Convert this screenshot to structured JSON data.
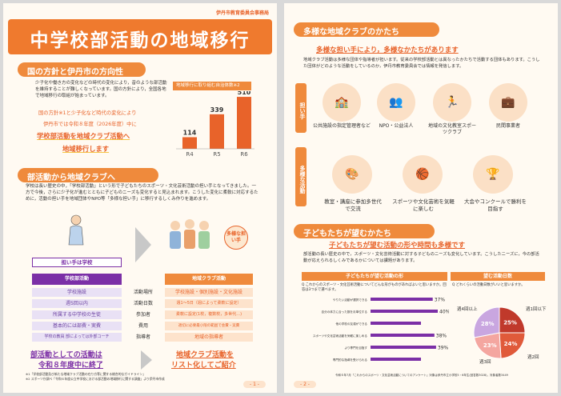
{
  "p1": {
    "office": "伊丹市教育委員会事務局",
    "title": "中学校部活動の地域移行",
    "sec1": "国の方針と伊丹市の方向性",
    "body1": "少子化や働き方の変化などの時代の変化により，音のような部活動を維持することが難しくなっています。国の方針により，全国各地で地域移行の取組が始まっています。",
    "lead1": "国の方針※1と少子化など時代の変化により",
    "lead2": "伊丹市では令和８年度（2026年度）中に",
    "lead3": "学校部活動を地域クラブ活動へ",
    "lead4": "地域移行します",
    "chart_title": "地域移行に取り組む自治体数※2",
    "sec2": "部活動から地域クラブへ",
    "body2": "学校は長い歴史の中，「学校部活動」という形で子どもたちのスポーツ・文化芸術活動の担い手となってきました。一方で今後，さらに少子化が進むとともに子どものニーズも変化すると見込まれます。こうした変化に柔軟に対応するために，活動の担い手を地域団体やNPO等「多様な担い手」に移行するしくみ作りを進めます。",
    "badge_left": "担い手は学校",
    "badge_right": "多様な担い手",
    "col_left": "学校部活動",
    "col_right": "地域クラブ活動",
    "rows": [
      {
        "left": "学校施設",
        "mid": "活動場所",
        "right": "学校施設・個別施設・文化施設"
      },
      {
        "left": "週5回以内",
        "mid": "活動日数",
        "right": "週1〜5日（週によって柔軟に設定）"
      },
      {
        "left": "所属する中学校の生徒",
        "mid": "参加者",
        "right": "柔軟に設定(1校，複数校，多世代…)"
      },
      {
        "left": "基本的には部費・実費",
        "mid": "費用",
        "right": "適切に必要最小限の範囲で会費・実費"
      },
      {
        "left": "学校の教員  部によっては外部コーチ",
        "mid": "指導者",
        "right": "地域の指導者"
      }
    ],
    "end_left1": "部活動としての活動は",
    "end_left2": "令和８年度中に終了",
    "end_right1": "地域クラブ活動を",
    "end_right2": "リスト化してご紹介",
    "fn1": "※1「学校部活動及び新たな地域クラブ活動の在り方等に関する総合的なガイドライン」",
    "fn2": "※2 スポーツ庁調べ「令和６年度公立中学校における部活動の地域移行に関する調査」より伊丹市作成",
    "page": "- 1 -"
  },
  "chart_data": {
    "type": "bar",
    "title": "地域移行に取り組む自治体数※2",
    "categories": [
      "R4",
      "R5",
      "R6"
    ],
    "values": [
      114,
      339,
      510
    ],
    "ylim": [
      0,
      560
    ]
  },
  "p2": {
    "sec1": "多様な地域クラブのかたち",
    "head1": "多様な担い手により，多様なかたちがあります",
    "body1": "地域クラブ活動は多様な団体や指導者が担います。従来の学校部活動とは異なったかたちで活動する団体もあります。こうした団体がどのような活動をしているのか，伊丹市教育委員会では情報を発信します。",
    "side1": "担い手",
    "side2": "多様な活動",
    "actors": [
      "公共施設の指定管理者など",
      "NPO・公益法人",
      "地域の文化教室スポーツクラブ",
      "民間事業者"
    ],
    "acts": [
      "教室・講座に参加多世代で交流",
      "スポーツや文化芸術を気軽に楽しむ",
      "大会やコンクールで勝利を目指す"
    ],
    "sec2": "子どもたちが望むかたち",
    "head2": "子どもたちが望む活動の形や時間も多様です",
    "body2": "部活動の長い歴史の中で，スポーツ・文化芸術活動に対する子どものニーズも変化しています。こうしたニーズに，今の部活動が応えられるしくみであるかについては課題があります。",
    "survey_h1": "子どもたちが望む活動の形",
    "survey_h2": "望む活動日数",
    "survey_q1": "Q これからのスポーツ・文化芸術活動についてどんな形がものがあればよいと思いますか。回答は3つまで選べます。",
    "survey_q2": "Q どれくらいの活動日数がいいと思いますか。",
    "survey_src": "令和６年7月「これからのスポーツ・文化芸術活動についてのアンケート」対象は伊丹市立小学校5・6年生(回答数3028)，対象者数3449",
    "page": "- 2 -"
  },
  "chart_data_2": {
    "type": "bar",
    "categories": [
      "やりたい活動が選択できる",
      "自分の体力に合った数を月単位する",
      "他の学校の友達ができる",
      "スポーツや文化芸術活動を気軽に楽しめる",
      "より専門を目指す",
      "専門的な指導を受けられる"
    ],
    "values": [
      37,
      40,
      null,
      38,
      39,
      null
    ]
  },
  "chart_data_3": {
    "type": "pie",
    "labels": [
      "週1回以下",
      "週2回",
      "週3回",
      "週4回以上"
    ],
    "values": [
      25,
      24,
      23,
      28
    ],
    "colors": [
      "#c0392b",
      "#e05a3a",
      "#f4a6a0",
      "#c9a6e0"
    ]
  }
}
